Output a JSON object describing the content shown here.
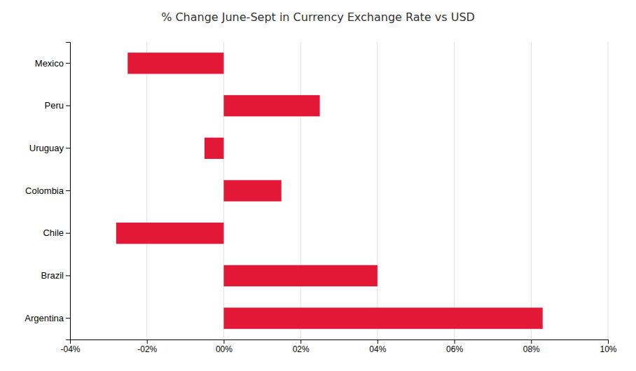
{
  "chart_data": {
    "type": "bar",
    "orientation": "horizontal",
    "title": "% Change June-Sept in Currency Exchange Rate vs USD",
    "categories": [
      "Argentina",
      "Brazil",
      "Chile",
      "Colombia",
      "Uruguay",
      "Peru",
      "Mexico"
    ],
    "values": [
      0.083,
      0.04,
      -0.028,
      0.015,
      -0.005,
      0.025,
      -0.025
    ],
    "color": "#E31837",
    "xlim": [
      -0.04,
      0.1
    ],
    "xticks": [
      {
        "value": -0.04,
        "label": "-04%"
      },
      {
        "value": -0.02,
        "label": "-02%"
      },
      {
        "value": 0.0,
        "label": "00%"
      },
      {
        "value": 0.02,
        "label": "02%"
      },
      {
        "value": 0.04,
        "label": "04%"
      },
      {
        "value": 0.06,
        "label": "06%"
      },
      {
        "value": 0.08,
        "label": "08%"
      },
      {
        "value": 0.1,
        "label": "10%"
      }
    ],
    "grid": true
  }
}
